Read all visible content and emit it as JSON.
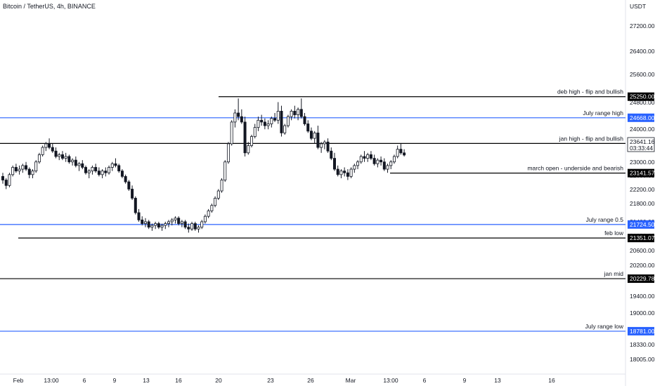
{
  "chart_title": "Bitcoin / TetherUS, 4h, BINANCE",
  "currency_label": "USDT",
  "colors": {
    "black_line": "#000000",
    "blue_line": "#2962ff",
    "candle": "#131722"
  },
  "chart_data": {
    "type": "candlestick",
    "y_ticks": [
      "27200.00",
      "26400.00",
      "25600.00",
      "24800.00",
      "24000.00",
      "23000.00",
      "22600.00",
      "22200.00",
      "21800.00",
      "21400.00",
      "21000.00",
      "20600.00",
      "20200.00",
      "19800.00",
      "19400.00",
      "19000.00",
      "18650.00",
      "18330.00",
      "18005.00"
    ],
    "x_ticks": [
      "Feb",
      "13:00",
      "6",
      "9",
      "13",
      "16",
      "20",
      "23",
      "26",
      "Mar",
      "13:00",
      "6",
      "9",
      "13",
      "16"
    ],
    "ylim": [
      17800,
      27800
    ],
    "current_price": {
      "value": "23641.16",
      "countdown": "03:33:44"
    },
    "levels": [
      {
        "label": "deb high - flip and bullish",
        "price": "25250.00",
        "value": 25250,
        "color": "black"
      },
      {
        "label": "July range high",
        "price": "24668.00",
        "value": 24668,
        "color": "blue"
      },
      {
        "label": "jan high - flip and bullish",
        "price": "23960.54",
        "value": 23960.54,
        "color": "black"
      },
      {
        "label": "march open - underside and bearish",
        "price": "23141.57",
        "value": 23141.57,
        "color": "black"
      },
      {
        "label": "July range 0.5",
        "price": "21724.50",
        "value": 21724.5,
        "color": "blue"
      },
      {
        "label": "feb low",
        "price": "21351.07",
        "value": 21351.07,
        "color": "black"
      },
      {
        "label": "jan mid",
        "price": "20229.78",
        "value": 20229.78,
        "color": "black"
      },
      {
        "label": "July range low",
        "price": "18781.00",
        "value": 18781,
        "color": "blue"
      }
    ],
    "candles": [
      [
        23050,
        23150,
        22850,
        22950
      ],
      [
        22950,
        23000,
        22700,
        22800
      ],
      [
        22800,
        23150,
        22750,
        23100
      ],
      [
        23100,
        23350,
        23050,
        23300
      ],
      [
        23300,
        23400,
        23150,
        23200
      ],
      [
        23200,
        23350,
        23100,
        23250
      ],
      [
        23250,
        23400,
        23150,
        23350
      ],
      [
        23350,
        23450,
        23200,
        23250
      ],
      [
        23250,
        23300,
        23000,
        23100
      ],
      [
        23100,
        23250,
        23000,
        23200
      ],
      [
        23200,
        23500,
        23150,
        23450
      ],
      [
        23450,
        23700,
        23400,
        23650
      ],
      [
        23650,
        23900,
        23600,
        23850
      ],
      [
        23850,
        24000,
        23750,
        23950
      ],
      [
        23950,
        24100,
        23800,
        23850
      ],
      [
        23850,
        23950,
        23700,
        23750
      ],
      [
        23750,
        23850,
        23550,
        23600
      ],
      [
        23600,
        23700,
        23500,
        23650
      ],
      [
        23650,
        23750,
        23500,
        23550
      ],
      [
        23550,
        23700,
        23450,
        23600
      ],
      [
        23600,
        23650,
        23400,
        23450
      ],
      [
        23450,
        23550,
        23350,
        23500
      ],
      [
        23500,
        23600,
        23300,
        23350
      ],
      [
        23350,
        23450,
        23200,
        23400
      ],
      [
        23400,
        23500,
        23250,
        23300
      ],
      [
        23300,
        23350,
        23100,
        23150
      ],
      [
        23150,
        23250,
        23000,
        23200
      ],
      [
        23200,
        23350,
        23100,
        23300
      ],
      [
        23300,
        23400,
        23150,
        23200
      ],
      [
        23200,
        23300,
        23050,
        23100
      ],
      [
        23100,
        23250,
        23000,
        23200
      ],
      [
        23200,
        23300,
        23050,
        23150
      ],
      [
        23150,
        23350,
        23100,
        23300
      ],
      [
        23300,
        23450,
        23200,
        23400
      ],
      [
        23400,
        23550,
        23300,
        23350
      ],
      [
        23350,
        23400,
        23150,
        23200
      ],
      [
        23200,
        23250,
        23000,
        23050
      ],
      [
        23050,
        23100,
        22850,
        22900
      ],
      [
        22900,
        22950,
        22650,
        22700
      ],
      [
        22700,
        22800,
        22400,
        22450
      ],
      [
        22450,
        22500,
        22000,
        22050
      ],
      [
        22050,
        22150,
        21800,
        21850
      ],
      [
        21850,
        21950,
        21700,
        21750
      ],
      [
        21750,
        21900,
        21650,
        21800
      ],
      [
        21800,
        21850,
        21600,
        21650
      ],
      [
        21650,
        21750,
        21550,
        21700
      ],
      [
        21700,
        21800,
        21600,
        21750
      ],
      [
        21750,
        21800,
        21600,
        21650
      ],
      [
        21650,
        21750,
        21550,
        21700
      ],
      [
        21700,
        21800,
        21600,
        21750
      ],
      [
        21750,
        21850,
        21650,
        21800
      ],
      [
        21800,
        21900,
        21700,
        21850
      ],
      [
        21850,
        21950,
        21750,
        21900
      ],
      [
        21900,
        21950,
        21700,
        21750
      ],
      [
        21750,
        21850,
        21650,
        21800
      ],
      [
        21800,
        21850,
        21600,
        21650
      ],
      [
        21650,
        21750,
        21500,
        21600
      ],
      [
        21600,
        21800,
        21550,
        21750
      ],
      [
        21750,
        21800,
        21550,
        21600
      ],
      [
        21600,
        21700,
        21500,
        21650
      ],
      [
        21650,
        21850,
        21600,
        21800
      ],
      [
        21800,
        22000,
        21750,
        21950
      ],
      [
        21950,
        22150,
        21900,
        22100
      ],
      [
        22100,
        22300,
        22050,
        22250
      ],
      [
        22250,
        22500,
        22200,
        22450
      ],
      [
        22450,
        22700,
        22400,
        22650
      ],
      [
        22650,
        23000,
        22600,
        22950
      ],
      [
        22950,
        23500,
        22900,
        23450
      ],
      [
        23450,
        24000,
        23400,
        23950
      ],
      [
        23950,
        24600,
        23900,
        24550
      ],
      [
        24550,
        24900,
        24400,
        24800
      ],
      [
        24800,
        25200,
        24600,
        24700
      ],
      [
        24700,
        24900,
        24500,
        24550
      ],
      [
        24550,
        24700,
        23600,
        23700
      ],
      [
        23700,
        24000,
        23650,
        23900
      ],
      [
        23900,
        24200,
        23850,
        24150
      ],
      [
        24150,
        24500,
        24100,
        24400
      ],
      [
        24400,
        24700,
        24300,
        24600
      ],
      [
        24600,
        24750,
        24450,
        24550
      ],
      [
        24550,
        24650,
        24350,
        24450
      ],
      [
        24450,
        24600,
        24350,
        24500
      ],
      [
        24500,
        24700,
        24400,
        24650
      ],
      [
        24650,
        24800,
        24550,
        24600
      ],
      [
        24600,
        25100,
        24500,
        24850
      ],
      [
        24850,
        25000,
        24150,
        24250
      ],
      [
        24250,
        24500,
        24200,
        24450
      ],
      [
        24450,
        24750,
        24400,
        24700
      ],
      [
        24700,
        24900,
        24600,
        24850
      ],
      [
        24850,
        25000,
        24650,
        24750
      ],
      [
        24750,
        24950,
        24600,
        24900
      ],
      [
        24900,
        25200,
        24650,
        24700
      ],
      [
        24700,
        24800,
        24450,
        24500
      ],
      [
        24500,
        24600,
        24250,
        24300
      ],
      [
        24300,
        24400,
        24050,
        24100
      ],
      [
        24100,
        24300,
        23950,
        24250
      ],
      [
        24250,
        24450,
        23800,
        23850
      ],
      [
        23850,
        24000,
        23700,
        23950
      ],
      [
        23950,
        24050,
        23800,
        24000
      ],
      [
        24000,
        24100,
        23700,
        23750
      ],
      [
        23750,
        23850,
        23500,
        23550
      ],
      [
        23550,
        23700,
        23200,
        23250
      ],
      [
        23250,
        23350,
        23050,
        23100
      ],
      [
        23100,
        23250,
        23000,
        23200
      ],
      [
        23200,
        23300,
        23050,
        23150
      ],
      [
        23150,
        23250,
        22950,
        23050
      ],
      [
        23050,
        23300,
        23000,
        23250
      ],
      [
        23250,
        23400,
        23150,
        23350
      ],
      [
        23350,
        23500,
        23250,
        23450
      ],
      [
        23450,
        23650,
        23400,
        23600
      ],
      [
        23600,
        23750,
        23450,
        23550
      ],
      [
        23550,
        23700,
        23450,
        23650
      ],
      [
        23650,
        23750,
        23500,
        23550
      ],
      [
        23550,
        23650,
        23350,
        23400
      ],
      [
        23400,
        23550,
        23300,
        23500
      ],
      [
        23500,
        23600,
        23350,
        23450
      ],
      [
        23450,
        23550,
        23200,
        23250
      ],
      [
        23250,
        23400,
        23150,
        23350
      ],
      [
        23350,
        23500,
        23250,
        23450
      ],
      [
        23450,
        23650,
        23400,
        23600
      ],
      [
        23600,
        23900,
        23550,
        23800
      ],
      [
        23800,
        23950,
        23650,
        23700
      ],
      [
        23700,
        23800,
        23600,
        23640
      ]
    ]
  }
}
